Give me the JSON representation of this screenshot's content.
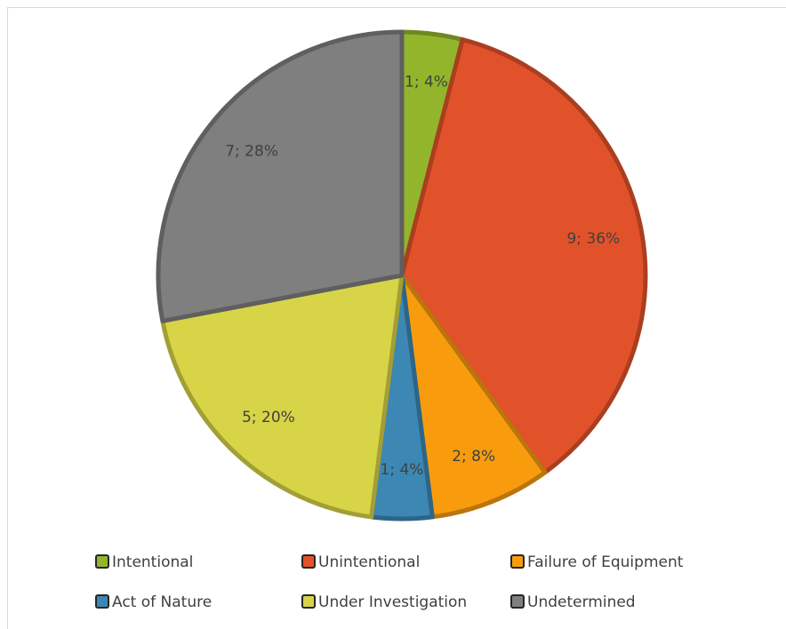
{
  "chart_data": {
    "type": "pie",
    "categories": [
      "Intentional",
      "Unintentional",
      "Failure of Equipment",
      "Act of Nature",
      "Under Investigation",
      "Undetermined"
    ],
    "values": [
      1,
      9,
      2,
      1,
      5,
      7
    ],
    "value_labels": [
      "1; 4%",
      "9; 36%",
      "2; 8%",
      "1; 4%",
      "5; 20%",
      "7; 28%"
    ],
    "colors": [
      "#93b52b",
      "#e2522a",
      "#f89c0e",
      "#3c87b3",
      "#d8d448",
      "#7f7f7f"
    ],
    "legend": "bottom"
  }
}
